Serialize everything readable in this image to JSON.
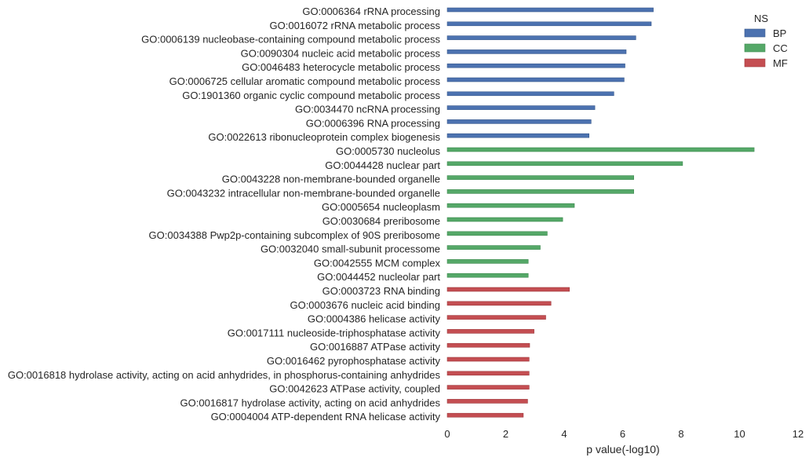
{
  "chart_data": {
    "type": "bar",
    "orientation": "horizontal",
    "xlabel": "p value(-log10)",
    "xlim": [
      0,
      12
    ],
    "xticks": [
      "0",
      "2",
      "4",
      "6",
      "8",
      "10",
      "12"
    ],
    "grid": false,
    "legend": {
      "title": "NS",
      "position": "top-right",
      "entries": [
        {
          "name": "BP",
          "color": "#4c72b0"
        },
        {
          "name": "CC",
          "color": "#55a868"
        },
        {
          "name": "MF",
          "color": "#c44e52"
        }
      ]
    },
    "categories": [
      {
        "label": "GO:0006364 rRNA processing",
        "value": 7.05,
        "ns": "BP"
      },
      {
        "label": "GO:0016072 rRNA metabolic process",
        "value": 6.98,
        "ns": "BP"
      },
      {
        "label": "GO:0006139 nucleobase-containing compound metabolic process",
        "value": 6.45,
        "ns": "BP"
      },
      {
        "label": "GO:0090304 nucleic acid metabolic process",
        "value": 6.12,
        "ns": "BP"
      },
      {
        "label": "GO:0046483 heterocycle metabolic process",
        "value": 6.08,
        "ns": "BP"
      },
      {
        "label": "GO:0006725 cellular aromatic compound metabolic process",
        "value": 6.05,
        "ns": "BP"
      },
      {
        "label": "GO:1901360 organic cyclic compound metabolic process",
        "value": 5.7,
        "ns": "BP"
      },
      {
        "label": "GO:0034470 ncRNA processing",
        "value": 5.05,
        "ns": "BP"
      },
      {
        "label": "GO:0006396 RNA processing",
        "value": 4.92,
        "ns": "BP"
      },
      {
        "label": "GO:0022613 ribonucleoprotein complex biogenesis",
        "value": 4.85,
        "ns": "BP"
      },
      {
        "label": "GO:0005730 nucleolus",
        "value": 10.5,
        "ns": "CC"
      },
      {
        "label": "GO:0044428 nuclear part",
        "value": 8.05,
        "ns": "CC"
      },
      {
        "label": "GO:0043228 non-membrane-bounded organelle",
        "value": 6.38,
        "ns": "CC"
      },
      {
        "label": "GO:0043232 intracellular non-membrane-bounded organelle",
        "value": 6.38,
        "ns": "CC"
      },
      {
        "label": "GO:0005654 nucleoplasm",
        "value": 4.35,
        "ns": "CC"
      },
      {
        "label": "GO:0030684 preribosome",
        "value": 3.95,
        "ns": "CC"
      },
      {
        "label": "GO:0034388 Pwp2p-containing subcomplex of 90S preribosome",
        "value": 3.42,
        "ns": "CC"
      },
      {
        "label": "GO:0032040 small-subunit processome",
        "value": 3.18,
        "ns": "CC"
      },
      {
        "label": "GO:0042555 MCM complex",
        "value": 2.77,
        "ns": "CC"
      },
      {
        "label": "GO:0044452 nucleolar part",
        "value": 2.77,
        "ns": "CC"
      },
      {
        "label": "GO:0003723 RNA binding",
        "value": 4.18,
        "ns": "MF"
      },
      {
        "label": "GO:0003676 nucleic acid binding",
        "value": 3.55,
        "ns": "MF"
      },
      {
        "label": "GO:0004386 helicase activity",
        "value": 3.37,
        "ns": "MF"
      },
      {
        "label": "GO:0017111 nucleoside-triphosphatase activity",
        "value": 2.97,
        "ns": "MF"
      },
      {
        "label": "GO:0016887 ATPase activity",
        "value": 2.82,
        "ns": "MF"
      },
      {
        "label": "GO:0016462 pyrophosphatase activity",
        "value": 2.8,
        "ns": "MF"
      },
      {
        "label": "GO:0016818 hydrolase activity, acting on acid anhydrides, in phosphorus-containing anhydrides",
        "value": 2.8,
        "ns": "MF"
      },
      {
        "label": "GO:0042623 ATPase activity, coupled",
        "value": 2.8,
        "ns": "MF"
      },
      {
        "label": "GO:0016817 hydrolase activity, acting on acid anhydrides",
        "value": 2.75,
        "ns": "MF"
      },
      {
        "label": "GO:0004004 ATP-dependent RNA helicase activity",
        "value": 2.6,
        "ns": "MF"
      }
    ]
  }
}
